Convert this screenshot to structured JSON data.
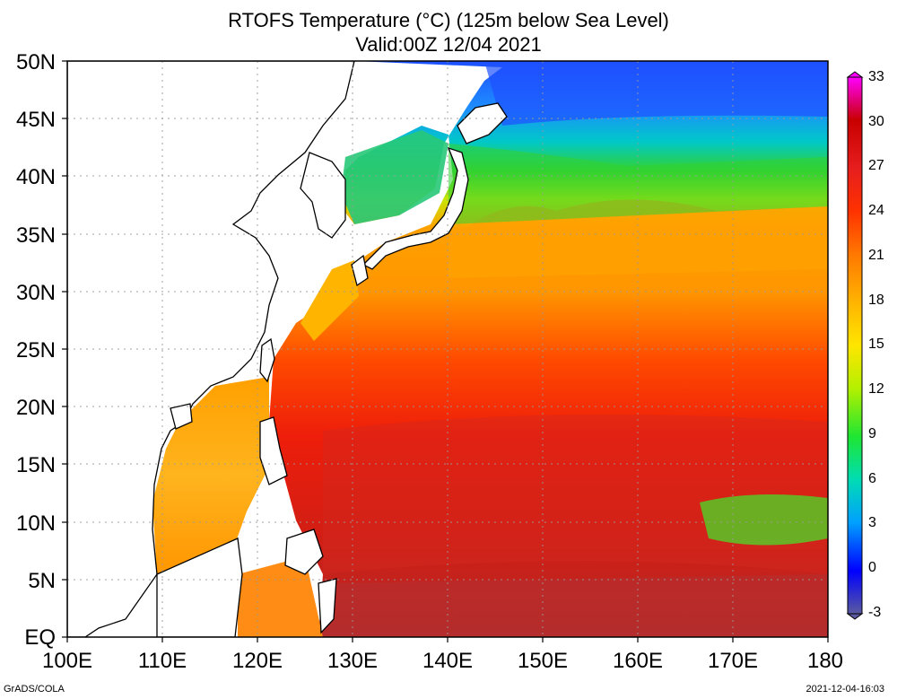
{
  "title": "RTOFS Temperature (°C) (125m below Sea Level)",
  "valid": "Valid:00Z 12/04 2021",
  "y_labels": [
    "50N",
    "45N",
    "40N",
    "35N",
    "30N",
    "25N",
    "20N",
    "15N",
    "10N",
    "5N",
    "EQ"
  ],
  "x_labels": [
    "100E",
    "110E",
    "120E",
    "130E",
    "140E",
    "150E",
    "160E",
    "170E",
    "180"
  ],
  "colorbar": {
    "labels": [
      "33",
      "30",
      "27",
      "24",
      "21",
      "18",
      "15",
      "12",
      "9",
      "6",
      "3",
      "0",
      "-3"
    ],
    "colors": [
      "#ff00ff",
      "#c80000",
      "#e61e1e",
      "#ff3200",
      "#ff7800",
      "#ffb400",
      "#ffe600",
      "#b4f000",
      "#1ee632",
      "#00dcb4",
      "#00a0ff",
      "#0000ff",
      "#5a5aa0"
    ]
  },
  "credit": "GrADS/COLA",
  "timestamp": "2021-12-04-16:03"
}
